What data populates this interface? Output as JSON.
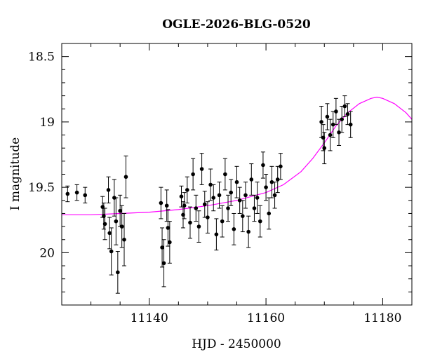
{
  "chart_data": {
    "type": "scatter",
    "title": "OGLE-2026-BLG-0520",
    "xlabel": "HJD - 2450000",
    "ylabel": "I magnitude",
    "xlim": [
      11125,
      11185
    ],
    "ylim": [
      20.4,
      18.4
    ],
    "y_inverted": true,
    "grid": false,
    "legend": "none",
    "x_ticks": [
      "11140",
      "11160",
      "11180"
    ],
    "y_ticks": [
      "18.5",
      "19",
      "19.5",
      "20"
    ],
    "colors": {
      "points": "#000000",
      "model": "#ff00ff"
    },
    "series": [
      {
        "kind": "points_with_errorbars",
        "x": [
          11126.0,
          11127.6,
          11129.0,
          11132.0,
          11132.2,
          11132.4,
          11133.0,
          11133.2,
          11133.5,
          11134.0,
          11134.3,
          11134.6,
          11135.0,
          11135.3,
          11135.7,
          11136.0,
          11142.0,
          11142.2,
          11142.5,
          11143.0,
          11143.2,
          11143.5,
          11145.5,
          11145.8,
          11146.0,
          11146.5,
          11147.0,
          11147.5,
          11148.0,
          11148.5,
          11149.0,
          11149.5,
          11150.0,
          11150.5,
          11151.0,
          11151.5,
          11152.0,
          11152.5,
          11153.0,
          11153.5,
          11154.0,
          11154.5,
          11155.0,
          11155.5,
          11156.0,
          11156.5,
          11157.0,
          11157.5,
          11158.0,
          11158.5,
          11159.0,
          11159.5,
          11160.0,
          11160.5,
          11161.0,
          11161.5,
          11162.0,
          11162.5,
          11169.5,
          11169.8,
          11170.0,
          11170.5,
          11171.0,
          11171.5,
          11172.0,
          11172.5,
          11173.0,
          11173.5,
          11174.0,
          11174.5
        ],
        "y": [
          19.55,
          19.54,
          19.56,
          19.65,
          19.72,
          19.78,
          19.52,
          19.85,
          19.99,
          19.58,
          19.76,
          20.15,
          19.68,
          19.8,
          19.9,
          19.42,
          19.62,
          19.96,
          20.08,
          19.64,
          19.81,
          19.92,
          19.57,
          19.71,
          19.64,
          19.52,
          19.77,
          19.4,
          19.66,
          19.8,
          19.36,
          19.63,
          19.73,
          19.48,
          19.58,
          19.86,
          19.56,
          19.76,
          19.4,
          19.66,
          19.54,
          19.82,
          19.46,
          19.6,
          19.72,
          19.56,
          19.84,
          19.44,
          19.66,
          19.58,
          19.76,
          19.33,
          19.5,
          19.7,
          19.46,
          19.56,
          19.44,
          19.34,
          19.0,
          19.12,
          19.2,
          18.96,
          19.1,
          19.02,
          18.92,
          19.08,
          18.98,
          18.88,
          18.94,
          19.02
        ],
        "yerr": [
          0.06,
          0.06,
          0.06,
          0.08,
          0.1,
          0.12,
          0.1,
          0.12,
          0.18,
          0.14,
          0.18,
          0.16,
          0.12,
          0.16,
          0.2,
          0.16,
          0.12,
          0.15,
          0.18,
          0.12,
          0.14,
          0.16,
          0.08,
          0.1,
          0.1,
          0.1,
          0.12,
          0.12,
          0.1,
          0.12,
          0.12,
          0.1,
          0.12,
          0.12,
          0.1,
          0.12,
          0.1,
          0.12,
          0.12,
          0.1,
          0.1,
          0.12,
          0.12,
          0.1,
          0.12,
          0.1,
          0.12,
          0.12,
          0.1,
          0.12,
          0.12,
          0.1,
          0.1,
          0.12,
          0.12,
          0.1,
          0.1,
          0.1,
          0.12,
          0.1,
          0.12,
          0.1,
          0.12,
          0.1,
          0.1,
          0.1,
          0.1,
          0.08,
          0.08,
          0.1
        ]
      },
      {
        "kind": "model_curve",
        "x": [
          11125,
          11130,
          11135,
          11140,
          11145,
          11150,
          11155,
          11160,
          11163,
          11166,
          11168,
          11170,
          11172,
          11174,
          11176,
          11178,
          11179,
          11180,
          11182,
          11184,
          11185
        ],
        "y": [
          19.71,
          19.71,
          19.7,
          19.69,
          19.67,
          19.64,
          19.6,
          19.54,
          19.48,
          19.38,
          19.28,
          19.16,
          19.03,
          18.93,
          18.86,
          18.82,
          18.81,
          18.82,
          18.86,
          18.93,
          18.98
        ]
      }
    ]
  }
}
